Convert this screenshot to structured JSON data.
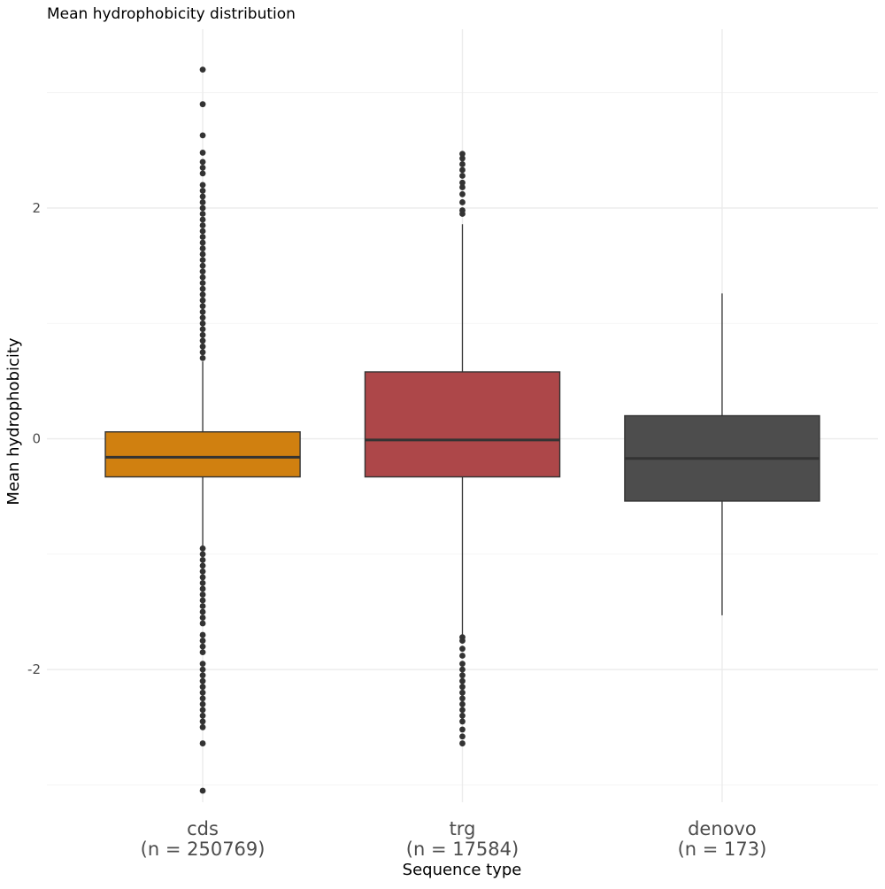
{
  "chart_data": {
    "type": "boxplot",
    "title": "Mean hydrophobicity distribution",
    "xlabel": "Sequence type",
    "ylabel": "Mean hydrophobicity",
    "ylim": [
      -3.15,
      3.55
    ],
    "y_ticks": [
      -2,
      0,
      2
    ],
    "y_tick_labels": [
      "-2",
      "0",
      "2"
    ],
    "y_minor_ticks": [
      -3,
      -1,
      1,
      3
    ],
    "grid": true,
    "legend": "none",
    "categories": [
      {
        "name": "cds",
        "n_label": "(n = 250769)",
        "color": "#D08010",
        "q1": -0.33,
        "median": -0.16,
        "q3": 0.06,
        "whisker_low": -0.93,
        "whisker_high": 0.67,
        "outliers_high": [
          0.7,
          0.75,
          0.8,
          0.85,
          0.9,
          0.95,
          1.0,
          1.05,
          1.1,
          1.15,
          1.2,
          1.25,
          1.3,
          1.35,
          1.4,
          1.45,
          1.5,
          1.55,
          1.6,
          1.65,
          1.7,
          1.75,
          1.8,
          1.85,
          1.9,
          1.95,
          2.0,
          2.05,
          2.1,
          2.15,
          2.2,
          2.3,
          2.35,
          2.4,
          2.48,
          2.63,
          2.9,
          3.2
        ],
        "outliers_low": [
          -0.95,
          -1.0,
          -1.05,
          -1.1,
          -1.15,
          -1.2,
          -1.25,
          -1.3,
          -1.35,
          -1.4,
          -1.45,
          -1.5,
          -1.55,
          -1.6,
          -1.7,
          -1.75,
          -1.8,
          -1.85,
          -1.95,
          -2.0,
          -2.05,
          -2.1,
          -2.15,
          -2.2,
          -2.25,
          -2.3,
          -2.35,
          -2.4,
          -2.45,
          -2.5,
          -2.64,
          -3.05
        ]
      },
      {
        "name": "trg",
        "n_label": "(n = 17584)",
        "color": "#AD4749",
        "q1": -0.33,
        "median": -0.01,
        "q3": 0.58,
        "whisker_low": -1.7,
        "whisker_high": 1.86,
        "outliers_high": [
          1.95,
          1.98,
          2.05,
          2.12,
          2.18,
          2.22,
          2.28,
          2.33,
          2.38,
          2.43,
          2.47
        ],
        "outliers_low": [
          -1.72,
          -1.75,
          -1.82,
          -1.88,
          -1.95,
          -2.0,
          -2.05,
          -2.1,
          -2.15,
          -2.2,
          -2.25,
          -2.3,
          -2.35,
          -2.4,
          -2.45,
          -2.52,
          -2.58,
          -2.64
        ]
      },
      {
        "name": "denovo",
        "n_label": "(n = 173)",
        "color": "#4D4D4D",
        "q1": -0.54,
        "median": -0.17,
        "q3": 0.2,
        "whisker_low": -1.53,
        "whisker_high": 1.26,
        "outliers_high": [],
        "outliers_low": []
      }
    ]
  }
}
